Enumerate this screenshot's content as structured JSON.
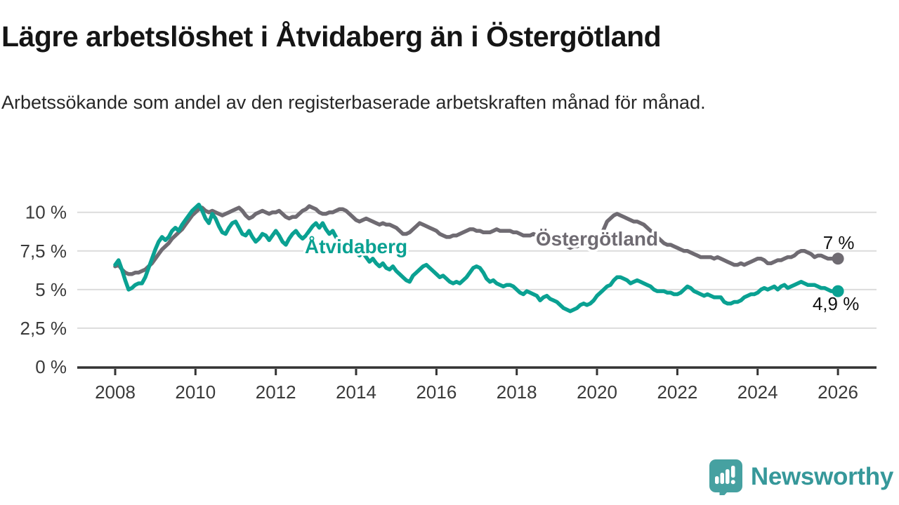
{
  "header": {
    "title": "Lägre arbetslöshet i Åtvidaberg än i Östergötland",
    "subtitle": "Arbetssökande som andel av den registerbaserade arbetskraften månad för månad."
  },
  "branding": {
    "name": "Newsworthy",
    "logo_icon": "bar-chart-speech-bubble-icon",
    "icon_color": "#46a1a1",
    "text_color": "#36989a",
    "icon_bar_color": "#ffffff"
  },
  "chart_data": {
    "type": "line",
    "title": "Lägre arbetslöshet i Åtvidaberg än i Östergötland",
    "subtitle": "Arbetssökande som andel av den registerbaserade arbetskraften månad för månad.",
    "unit": "%",
    "x_start_year": 2008,
    "points_per_year": 12,
    "x_end_year": 2026,
    "xlim": [
      2007.05,
      2026.95
    ],
    "ylim": [
      0,
      11
    ],
    "grid": "horizontal",
    "legend_position": "inline-labels",
    "x_ticks": [
      2008,
      2010,
      2012,
      2014,
      2016,
      2018,
      2020,
      2022,
      2024,
      2026
    ],
    "y_ticks": [
      {
        "value": 0,
        "label": "0 %"
      },
      {
        "value": 2.5,
        "label": "2,5 %"
      },
      {
        "value": 5,
        "label": "5 %"
      },
      {
        "value": 7.5,
        "label": "7,5 %"
      },
      {
        "value": 10,
        "label": "10 %"
      }
    ],
    "colors": {
      "grid": "#dcdcdc",
      "axis": "#333333",
      "tick_text": "#3a3a3a"
    },
    "series": [
      {
        "name": "Åtvidaberg",
        "color": "#0aa192",
        "end_label": "4,9 %",
        "end_label_position": "below",
        "label_pos": {
          "x": 2014.0,
          "y": 7.8
        },
        "values": [
          6.6,
          6.9,
          6.3,
          5.6,
          5.0,
          5.1,
          5.3,
          5.4,
          5.4,
          5.8,
          6.4,
          7.0,
          7.6,
          8.1,
          8.4,
          8.2,
          8.4,
          8.8,
          9.0,
          8.8,
          9.2,
          9.5,
          9.8,
          10.1,
          10.3,
          10.5,
          10.1,
          9.6,
          9.3,
          9.9,
          9.6,
          9.1,
          8.7,
          8.6,
          9.0,
          9.3,
          9.4,
          9.0,
          8.6,
          8.5,
          8.8,
          8.4,
          8.1,
          8.3,
          8.6,
          8.5,
          8.2,
          8.5,
          8.8,
          8.5,
          8.1,
          7.9,
          8.3,
          8.6,
          8.8,
          8.5,
          8.3,
          8.5,
          8.8,
          9.1,
          9.3,
          9.0,
          9.3,
          8.9,
          8.6,
          8.8,
          8.4,
          8.1,
          7.9,
          7.7,
          7.5,
          7.6,
          7.4,
          7.2,
          7.4,
          7.1,
          6.8,
          7.0,
          6.7,
          6.5,
          6.7,
          6.4,
          6.3,
          6.5,
          6.2,
          6.0,
          5.8,
          5.6,
          5.5,
          5.9,
          6.1,
          6.3,
          6.5,
          6.6,
          6.4,
          6.2,
          6.0,
          5.8,
          5.9,
          5.7,
          5.5,
          5.4,
          5.5,
          5.4,
          5.6,
          5.8,
          6.1,
          6.4,
          6.5,
          6.4,
          6.1,
          5.7,
          5.5,
          5.6,
          5.4,
          5.3,
          5.2,
          5.3,
          5.3,
          5.2,
          5.0,
          4.8,
          4.7,
          4.9,
          4.8,
          4.7,
          4.6,
          4.3,
          4.5,
          4.6,
          4.4,
          4.3,
          4.2,
          4.0,
          3.8,
          3.7,
          3.6,
          3.7,
          3.8,
          4.0,
          4.1,
          4.0,
          4.1,
          4.3,
          4.6,
          4.8,
          5.0,
          5.2,
          5.3,
          5.6,
          5.8,
          5.8,
          5.7,
          5.6,
          5.4,
          5.5,
          5.6,
          5.5,
          5.4,
          5.3,
          5.2,
          5.0,
          4.9,
          4.9,
          4.9,
          4.8,
          4.8,
          4.7,
          4.7,
          4.8,
          5.0,
          5.2,
          5.1,
          4.9,
          4.8,
          4.7,
          4.6,
          4.7,
          4.6,
          4.5,
          4.5,
          4.5,
          4.2,
          4.1,
          4.1,
          4.2,
          4.2,
          4.3,
          4.5,
          4.6,
          4.7,
          4.7,
          4.8,
          5.0,
          5.1,
          5.0,
          5.1,
          5.2,
          5.0,
          5.2,
          5.3,
          5.1,
          5.2,
          5.3,
          5.4,
          5.5,
          5.4,
          5.3,
          5.3,
          5.3,
          5.2,
          5.1,
          5.1,
          5.0,
          4.9,
          4.9,
          4.9
        ]
      },
      {
        "name": "Östergötland",
        "color": "#6f6b72",
        "end_label": "7 %",
        "end_label_position": "above",
        "label_pos": {
          "x": 2020.0,
          "y": 8.3
        },
        "values": [
          6.5,
          6.6,
          6.3,
          6.1,
          6.0,
          6.0,
          6.1,
          6.1,
          6.2,
          6.3,
          6.5,
          6.7,
          7.0,
          7.3,
          7.6,
          7.8,
          8.0,
          8.3,
          8.5,
          8.7,
          8.9,
          9.2,
          9.5,
          9.8,
          10.0,
          10.2,
          10.3,
          10.1,
          10.0,
          10.1,
          10.0,
          9.9,
          9.8,
          9.9,
          10.0,
          10.1,
          10.2,
          10.3,
          10.1,
          9.8,
          9.6,
          9.7,
          9.9,
          10.0,
          10.1,
          10.0,
          9.9,
          10.0,
          10.0,
          10.1,
          9.9,
          9.7,
          9.6,
          9.7,
          9.7,
          9.9,
          10.1,
          10.2,
          10.4,
          10.3,
          10.2,
          10.0,
          9.9,
          9.9,
          10.0,
          10.0,
          10.1,
          10.2,
          10.2,
          10.1,
          9.9,
          9.7,
          9.5,
          9.4,
          9.5,
          9.6,
          9.5,
          9.4,
          9.3,
          9.2,
          9.3,
          9.2,
          9.2,
          9.1,
          9.0,
          8.8,
          8.6,
          8.6,
          8.7,
          8.9,
          9.1,
          9.3,
          9.2,
          9.1,
          9.0,
          8.9,
          8.8,
          8.6,
          8.5,
          8.4,
          8.4,
          8.5,
          8.5,
          8.6,
          8.7,
          8.8,
          8.9,
          8.9,
          8.8,
          8.8,
          8.7,
          8.7,
          8.7,
          8.8,
          8.9,
          8.8,
          8.8,
          8.8,
          8.8,
          8.7,
          8.7,
          8.6,
          8.5,
          8.5,
          8.5,
          8.6,
          8.5,
          8.4,
          8.3,
          8.4,
          8.3,
          8.2,
          8.1,
          8.0,
          7.9,
          7.8,
          7.7,
          7.8,
          7.8,
          7.9,
          8.0,
          8.0,
          8.1,
          8.1,
          8.3,
          8.4,
          8.9,
          9.4,
          9.6,
          9.8,
          9.9,
          9.8,
          9.7,
          9.6,
          9.5,
          9.4,
          9.4,
          9.3,
          9.2,
          9.0,
          8.8,
          8.6,
          8.4,
          8.2,
          8.0,
          7.9,
          7.9,
          7.8,
          7.7,
          7.6,
          7.5,
          7.5,
          7.4,
          7.3,
          7.2,
          7.1,
          7.1,
          7.1,
          7.1,
          7.0,
          7.1,
          7.0,
          6.9,
          6.8,
          6.7,
          6.6,
          6.6,
          6.7,
          6.6,
          6.7,
          6.8,
          6.9,
          7.0,
          7.0,
          6.9,
          6.7,
          6.7,
          6.8,
          6.9,
          6.9,
          7.0,
          7.1,
          7.1,
          7.2,
          7.4,
          7.5,
          7.5,
          7.4,
          7.3,
          7.1,
          7.2,
          7.2,
          7.1,
          7.0,
          7.0,
          7.0,
          7.0
        ]
      }
    ]
  }
}
